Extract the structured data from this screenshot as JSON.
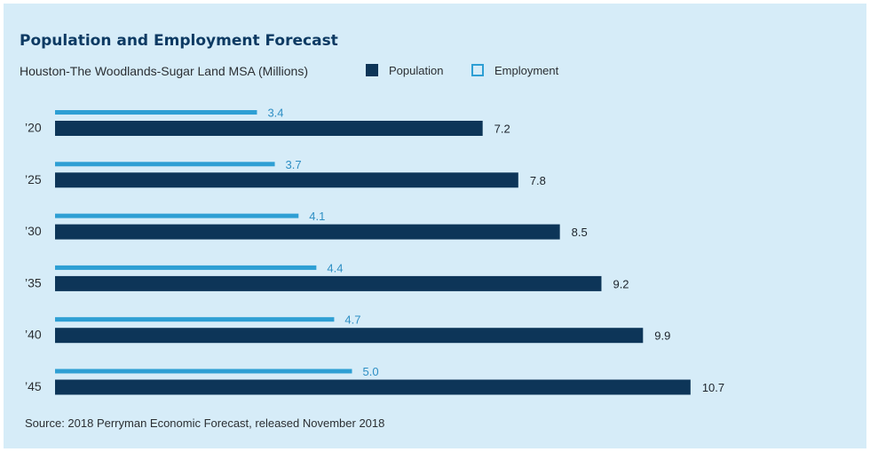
{
  "colors": {
    "background": "#d6ecf8",
    "population": "#0d3558",
    "employment": "#2e9fd4",
    "employment_label": "#2e8fc4",
    "title": "#0d3a63"
  },
  "legend": {
    "population": "Population",
    "employment": "Employment"
  },
  "source": "Source: 2018 Perryman Economic Forecast, released November 2018",
  "chart_data": {
    "type": "bar",
    "orientation": "horizontal",
    "title": "Population and Employment Forecast",
    "subtitle": "Houston-The Woodlands-Sugar Land MSA (Millions)",
    "categories": [
      "’20",
      "’25",
      "’30",
      "’35",
      "’40",
      "’45"
    ],
    "series": [
      {
        "name": "Employment",
        "values": [
          3.4,
          3.7,
          4.1,
          4.4,
          4.7,
          5.0
        ]
      },
      {
        "name": "Population",
        "values": [
          7.2,
          7.8,
          8.5,
          9.2,
          9.9,
          10.7
        ]
      }
    ],
    "data_labels": {
      "Employment": [
        "3.4",
        "3.7",
        "4.1",
        "4.4",
        "4.7",
        "5.0"
      ],
      "Population": [
        "7.2",
        "7.8",
        "8.5",
        "9.2",
        "9.9",
        "10.7"
      ]
    },
    "grid": false,
    "legend_position": "top"
  }
}
